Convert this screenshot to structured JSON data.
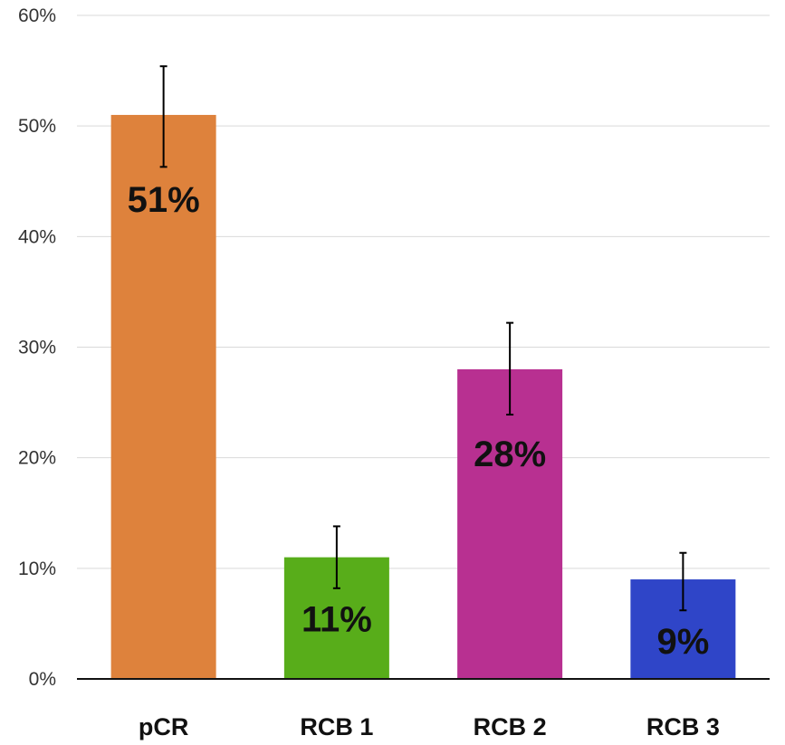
{
  "chart_data": {
    "type": "bar",
    "title": "",
    "xlabel": "",
    "ylabel": "",
    "categories": [
      "pCR",
      "RCB 1",
      "RCB 2",
      "RCB 3"
    ],
    "values": [
      51,
      11,
      28,
      9
    ],
    "data_labels": [
      "51%",
      "11%",
      "28%",
      "9%"
    ],
    "error_bars": [
      {
        "low": 46.3,
        "high": 55.4
      },
      {
        "low": 8.2,
        "high": 13.8
      },
      {
        "low": 23.9,
        "high": 32.2
      },
      {
        "low": 6.2,
        "high": 11.4
      }
    ],
    "colors": [
      "#de823c",
      "#58ad1a",
      "#b83091",
      "#2f45c8"
    ],
    "ylim": [
      0,
      60
    ],
    "yticks": [
      0,
      10,
      20,
      30,
      40,
      50,
      60
    ],
    "ytick_labels": [
      "0%",
      "10%",
      "20%",
      "30%",
      "40%",
      "50%",
      "60%"
    ],
    "grid": true,
    "legend": "none"
  }
}
